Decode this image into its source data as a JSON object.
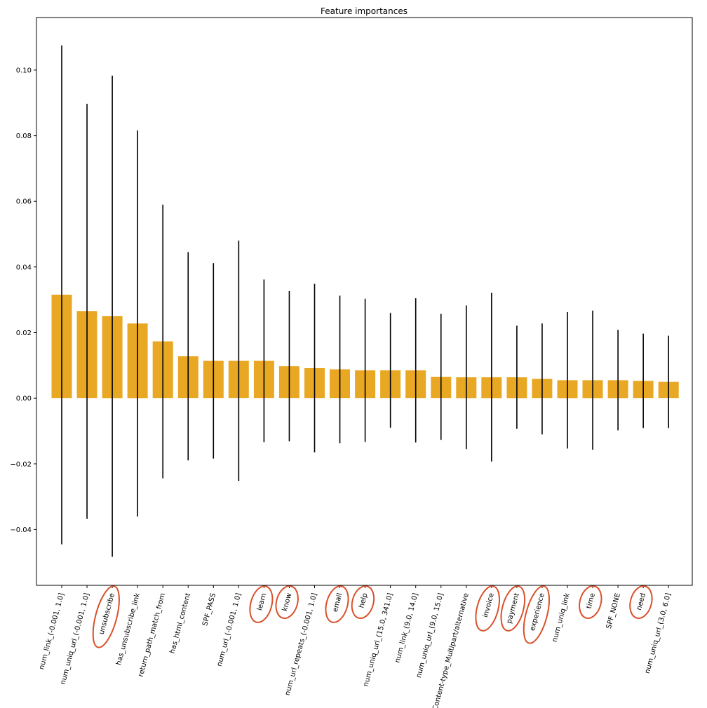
{
  "chart_data": {
    "type": "bar",
    "title": "Feature importances",
    "xlabel": "",
    "ylabel": "",
    "ylim": [
      -0.057,
      0.116
    ],
    "yticks": [
      -0.04,
      -0.02,
      0.0,
      0.02,
      0.04,
      0.06,
      0.08,
      0.1
    ],
    "ytick_labels": [
      "−0.04",
      "−0.02",
      "0.00",
      "0.02",
      "0.04",
      "0.06",
      "0.08",
      "0.10"
    ],
    "grid": false,
    "bar_color": "#E8A823",
    "errorbar_color": "#000000",
    "annotation_color": "#D9512B",
    "categories": [
      "num_link_(-0.001, 1.0]",
      "num_uniq_url_(-0.001, 1.0]",
      "unsubscribe",
      "has_unsubscribe_link",
      "return_path_match_from",
      "has_html_content",
      "SPF_PASS",
      "num_url_(-0.001, 1.0]",
      "learn",
      "know",
      "num_url_repeats_(-0.001, 1.0]",
      "email",
      "help",
      "num_uniq_url_(15.0, 341.0]",
      "num_link_(9.0, 14.0]",
      "num_uniq_url_(9.0, 15.0]",
      "Content-type_Multipart/alternative",
      "invoice",
      "payment",
      "experience",
      "num_uniq_link",
      "time",
      "SPF_NONE",
      "need",
      "num_uniq_url_(3.0, 6.0]"
    ],
    "values": [
      0.0315,
      0.0265,
      0.025,
      0.0228,
      0.0173,
      0.0128,
      0.0114,
      0.0114,
      0.0114,
      0.0098,
      0.0092,
      0.0088,
      0.0085,
      0.0085,
      0.0085,
      0.0065,
      0.0064,
      0.0064,
      0.0064,
      0.0059,
      0.0055,
      0.0055,
      0.0055,
      0.0053,
      0.005
    ],
    "errors": [
      0.076,
      0.0632,
      0.0733,
      0.0588,
      0.0417,
      0.0317,
      0.0298,
      0.0366,
      0.0248,
      0.0229,
      0.0257,
      0.0225,
      0.0218,
      0.0175,
      0.022,
      0.0192,
      0.0219,
      0.0257,
      0.0157,
      0.0169,
      0.0208,
      0.0212,
      0.0153,
      0.0144,
      0.0141
    ],
    "circled": [
      "unsubscribe",
      "learn",
      "know",
      "email",
      "help",
      "invoice",
      "payment",
      "experience",
      "time",
      "need"
    ]
  }
}
